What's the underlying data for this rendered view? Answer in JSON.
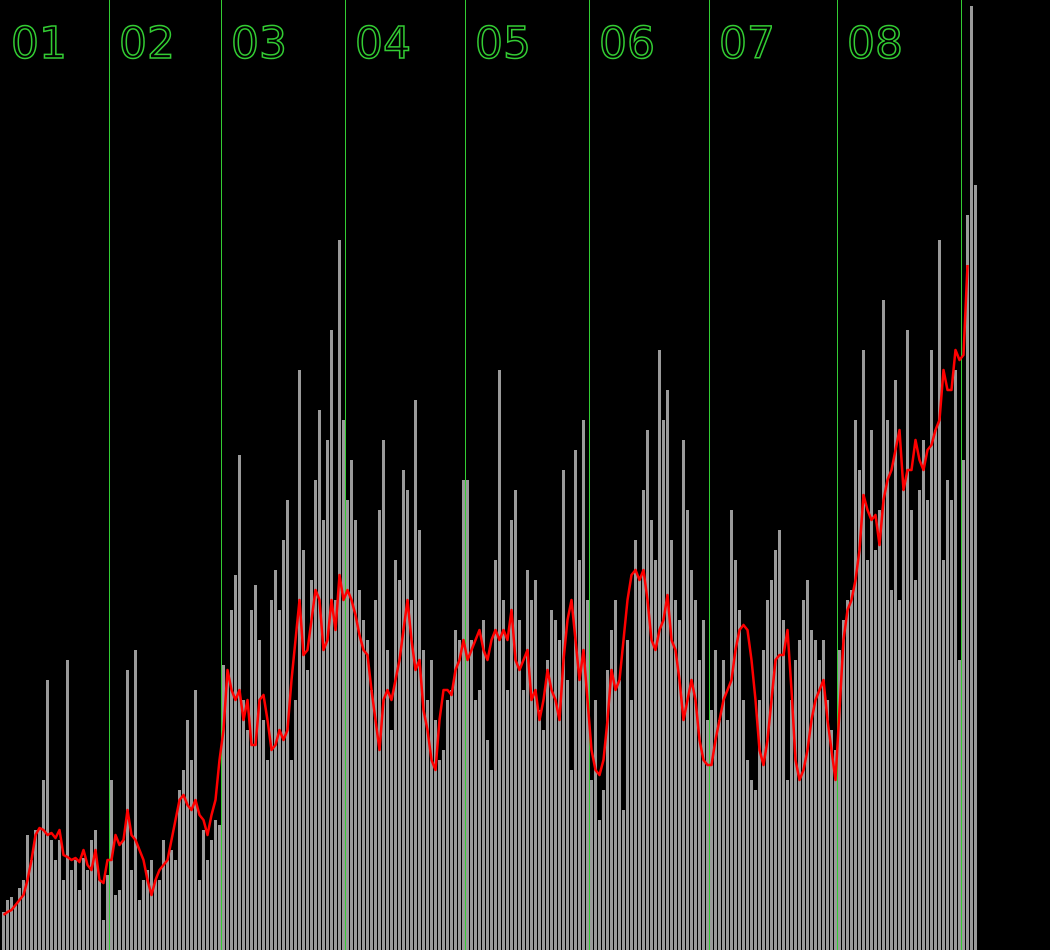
{
  "chart_data": {
    "type": "bar",
    "ylim": [
      0,
      950
    ],
    "bar_color": "#9a9a9a",
    "line_color": "#ff0000",
    "boundary_color": "#33cc33",
    "groups": [
      {
        "label": "01",
        "values": [
          38,
          50,
          53,
          45,
          62,
          70,
          115,
          90,
          120,
          122,
          170,
          270,
          110,
          90,
          110,
          70,
          290,
          80,
          90,
          60,
          92,
          80,
          110,
          120,
          70,
          30,
          75
        ],
        "trend": [
          35,
          38,
          40,
          45,
          50,
          55,
          70,
          90,
          115,
          122,
          120,
          115,
          117,
          112,
          120,
          95,
          93,
          90,
          92,
          88,
          100,
          85,
          80,
          100,
          70,
          67,
          90
        ]
      },
      {
        "label": "02",
        "values": [
          170,
          55,
          60,
          110,
          280,
          80,
          300,
          50,
          70,
          80,
          90,
          70,
          70,
          110,
          90,
          100,
          90,
          160,
          180,
          230,
          190,
          260,
          70,
          120,
          90,
          110,
          130,
          125
        ],
        "trend": [
          90,
          115,
          105,
          110,
          140,
          115,
          110,
          100,
          90,
          70,
          55,
          70,
          80,
          85,
          90,
          110,
          130,
          150,
          155,
          145,
          140,
          150,
          135,
          130,
          115,
          135,
          150,
          190
        ]
      },
      {
        "label": "03",
        "values": [
          285,
          275,
          340,
          375,
          495,
          250,
          220,
          340,
          365,
          310,
          230,
          190,
          350,
          380,
          340,
          410,
          450,
          190,
          250,
          580,
          400,
          280,
          370,
          470,
          540,
          430,
          510,
          620,
          350,
          710,
          530
        ],
        "trend": [
          220,
          280,
          260,
          250,
          260,
          230,
          250,
          205,
          205,
          250,
          255,
          230,
          200,
          205,
          220,
          210,
          220,
          270,
          310,
          350,
          295,
          300,
          330,
          360,
          350,
          300,
          310,
          350,
          320,
          375,
          350
        ]
      },
      {
        "label": "04",
        "values": [
          450,
          490,
          430,
          360,
          330,
          310,
          260,
          350,
          440,
          510,
          300,
          220,
          390,
          370,
          480,
          460,
          350,
          550,
          420,
          300,
          250,
          290,
          230,
          190,
          200,
          250,
          260,
          320,
          310,
          470
        ],
        "trend": [
          360,
          350,
          335,
          315,
          300,
          295,
          260,
          230,
          200,
          250,
          260,
          250,
          270,
          290,
          320,
          350,
          310,
          280,
          290,
          240,
          220,
          190,
          180,
          230,
          260,
          260,
          255,
          280,
          290,
          310
        ]
      },
      {
        "label": "05",
        "values": [
          470,
          310,
          250,
          260,
          330,
          210,
          180,
          390,
          580,
          350,
          260,
          430,
          460,
          330,
          260,
          380,
          350,
          370,
          240,
          220,
          290,
          340,
          330,
          310,
          480,
          270,
          180,
          500,
          390,
          530,
          350
        ],
        "trend": [
          290,
          300,
          310,
          320,
          300,
          290,
          310,
          320,
          310,
          320,
          310,
          340,
          290,
          280,
          290,
          300,
          250,
          260,
          230,
          250,
          280,
          260,
          250,
          230,
          290,
          330,
          350,
          310,
          270,
          300,
          250
        ]
      },
      {
        "label": "06",
        "values": [
          170,
          250,
          130,
          160,
          280,
          320,
          350,
          270,
          140,
          310,
          250,
          410,
          370,
          460,
          520,
          430,
          390,
          600,
          530,
          560,
          410,
          350,
          330,
          510,
          440,
          380,
          350,
          290,
          330,
          230
        ],
        "trend": [
          200,
          180,
          175,
          190,
          230,
          280,
          260,
          270,
          310,
          350,
          375,
          380,
          370,
          380,
          350,
          310,
          300,
          320,
          330,
          355,
          310,
          300,
          270,
          230,
          250,
          270,
          250,
          210,
          190,
          185
        ]
      },
      {
        "label": "07",
        "values": [
          240,
          300,
          230,
          290,
          230,
          440,
          390,
          340,
          250,
          190,
          170,
          160,
          250,
          300,
          350,
          370,
          400,
          420,
          330,
          170,
          250,
          290,
          310,
          350,
          370,
          320,
          310,
          290,
          310,
          250,
          220,
          200
        ],
        "trend": [
          185,
          210,
          230,
          250,
          260,
          270,
          300,
          320,
          325,
          320,
          290,
          250,
          200,
          185,
          210,
          250,
          290,
          295,
          295,
          320,
          260,
          190,
          170,
          180,
          200,
          230,
          250,
          260,
          270,
          230,
          200,
          170
        ]
      },
      {
        "label": "08",
        "values": [
          300,
          330,
          350,
          360,
          530,
          480,
          600,
          390,
          520,
          400,
          440,
          650,
          530,
          360,
          570,
          350,
          460,
          620,
          440,
          370,
          460,
          510,
          450,
          600,
          520,
          710,
          390,
          470,
          450,
          580,
          290
        ],
        "trend": [
          240,
          310,
          340,
          350,
          370,
          400,
          455,
          440,
          430,
          435,
          405,
          450,
          470,
          480,
          500,
          520,
          460,
          480,
          480,
          510,
          490,
          480,
          500,
          505,
          520,
          530,
          580,
          560,
          560,
          600,
          590
        ]
      },
      {
        "label": null,
        "values": [
          490,
          735,
          944,
          765
        ],
        "trend": [
          595,
          685,
          null,
          null
        ]
      }
    ]
  }
}
